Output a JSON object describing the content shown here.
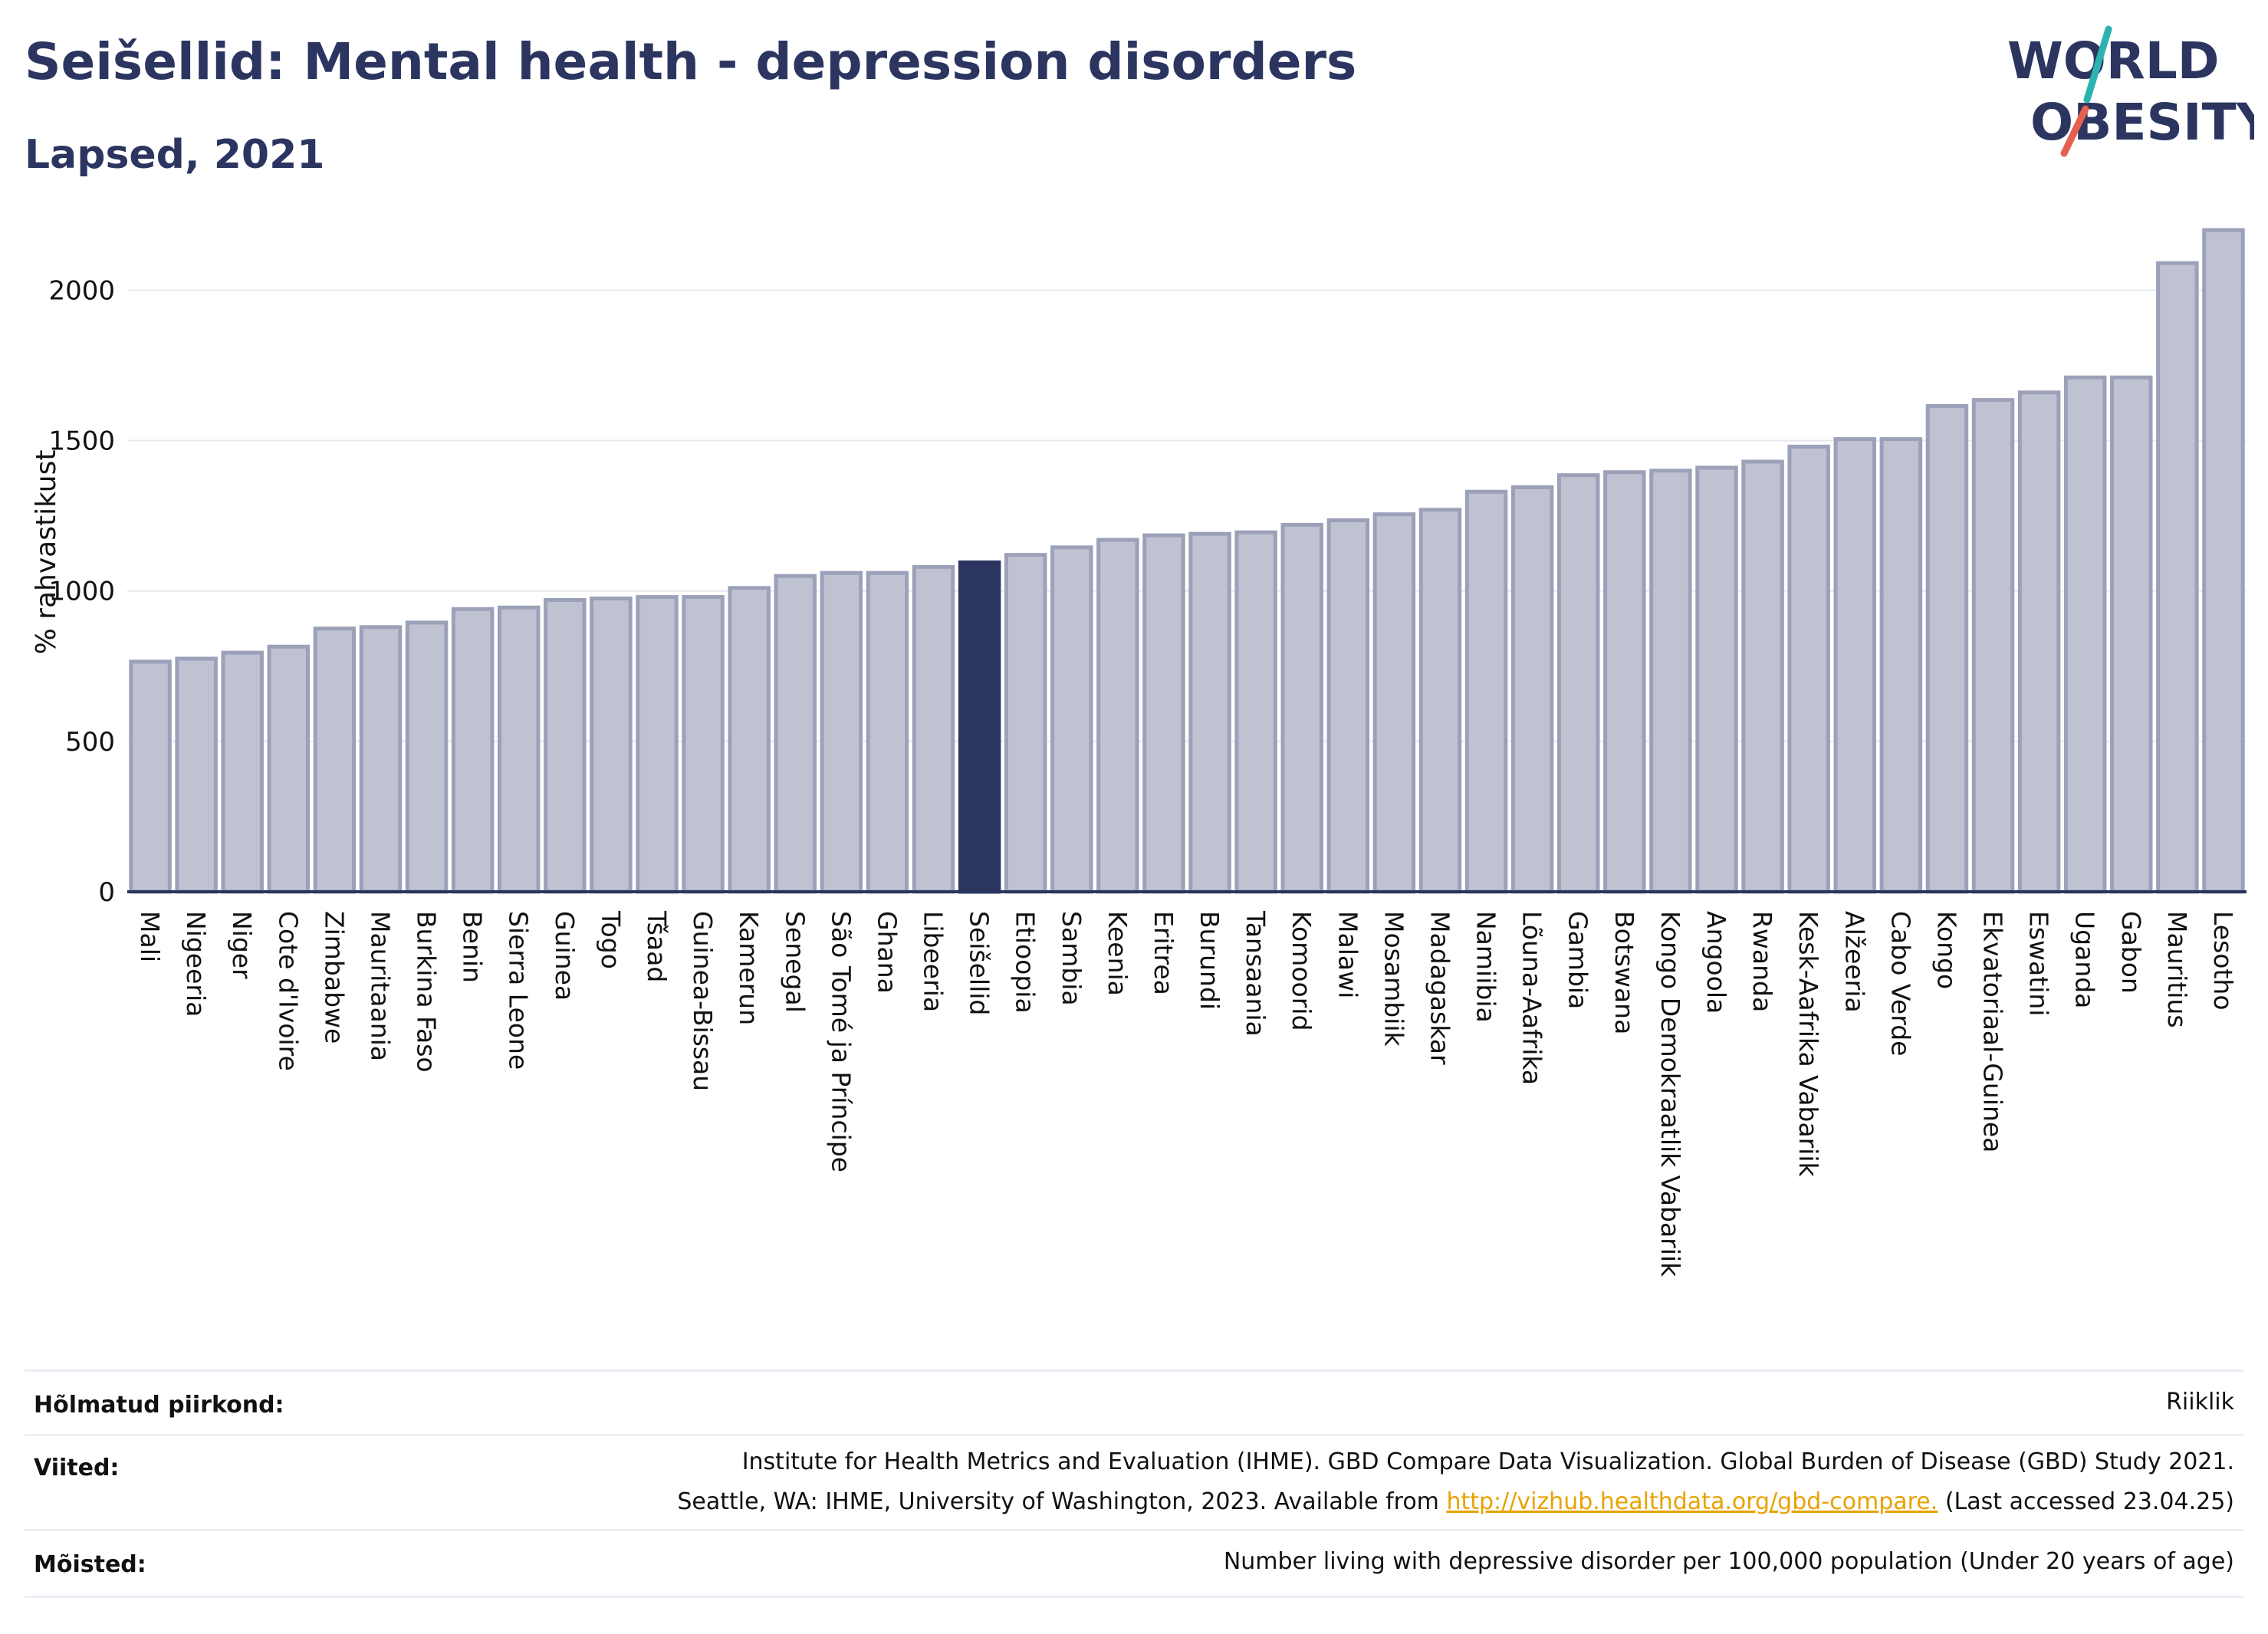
{
  "header": {
    "title": "Seišellid: Mental health - depression disorders",
    "subtitle": "Lapsed, 2021"
  },
  "logo": {
    "line1": "WORLD",
    "line2": "OBESITY",
    "accent_teal": "#2ab3b1",
    "accent_red": "#e5604f"
  },
  "colors": {
    "bar": "#bec2d1",
    "bar_stroke": "#9ca1b9",
    "highlight": "#2b3560",
    "axis": "#2b3560",
    "grid": "#e6e8ef"
  },
  "chart_data": {
    "type": "bar",
    "title": "Seišellid: Mental health - depression disorders",
    "subtitle": "Lapsed, 2021",
    "ylabel": "% rahvastikust",
    "xlabel": "",
    "ylim": [
      0,
      2200
    ],
    "yticks": [
      0,
      500,
      1000,
      1500,
      2000
    ],
    "grid": true,
    "highlight": "Seišellid",
    "categories": [
      "Mali",
      "Nigeeria",
      "Niger",
      "Cote d'Ivoire",
      "Zimbabwe",
      "Mauritaania",
      "Burkina Faso",
      "Benin",
      "Sierra Leone",
      "Guinea",
      "Togo",
      "Tšaad",
      "Guinea-Bissau",
      "Kamerun",
      "Senegal",
      "São Tomé ja Príncipe",
      "Ghana",
      "Libeeria",
      "Seišellid",
      "Etioopia",
      "Sambia",
      "Keenia",
      "Eritrea",
      "Burundi",
      "Tansaania",
      "Komoorid",
      "Malawi",
      "Mosambiik",
      "Madagaskar",
      "Namiibia",
      "Lõuna-Aafrika",
      "Gambia",
      "Botswana",
      "Kongo Demokraatlik Vabariik",
      "Angoola",
      "Rwanda",
      "Kesk-Aafrika Vabariik",
      "Alžeeria",
      "Cabo Verde",
      "Kongo",
      "Ekvatoriaal-Guinea",
      "Eswatini",
      "Uganda",
      "Gabon",
      "Mauritius",
      "Lesotho"
    ],
    "values": [
      765,
      775,
      795,
      815,
      875,
      880,
      895,
      940,
      945,
      970,
      975,
      980,
      980,
      1010,
      1050,
      1060,
      1060,
      1080,
      1095,
      1120,
      1145,
      1170,
      1185,
      1190,
      1195,
      1220,
      1235,
      1255,
      1270,
      1330,
      1345,
      1385,
      1395,
      1400,
      1410,
      1430,
      1480,
      1505,
      1505,
      1615,
      1635,
      1660,
      1710,
      1710,
      2090,
      2200
    ]
  },
  "footer": {
    "region_label": "Hõlmatud piirkond:",
    "region_value": "Riiklik",
    "refs_label": "Viited:",
    "refs_line1": "Institute for Health Metrics and Evaluation (IHME). GBD Compare Data Visualization. Global Burden of Disease (GBD) Study 2021.",
    "refs_line2_pre": "Seattle, WA: IHME, University of Washington, 2023. Available from ",
    "refs_link": "http://vizhub.healthdata.org/gbd-compare.",
    "refs_line2_post": " (Last accessed 23.04.25)",
    "defs_label": "Mõisted:",
    "defs_value": "Number living with depressive disorder per 100,000 population (Under 20 years of age)"
  }
}
